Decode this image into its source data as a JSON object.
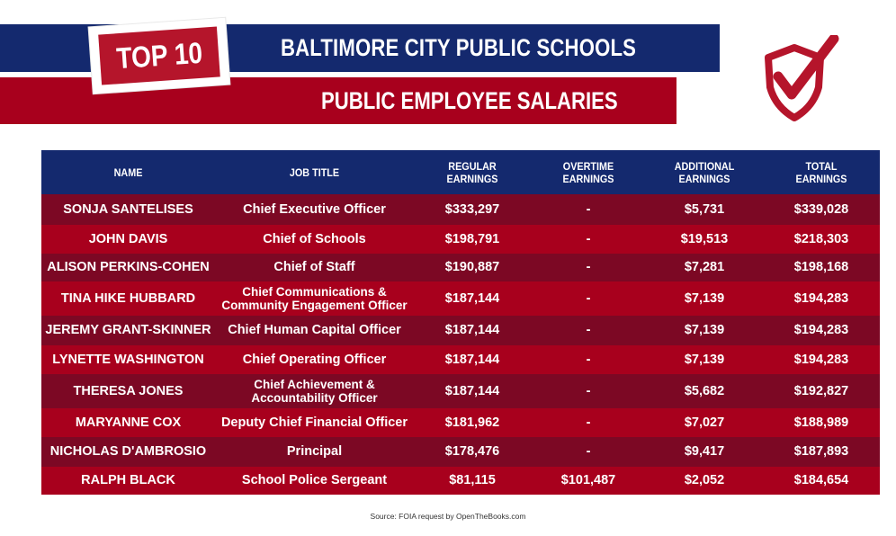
{
  "header": {
    "badge": "TOP 10",
    "title_line1": "BALTIMORE CITY PUBLIC SCHOOLS",
    "title_line2": "PUBLIC EMPLOYEE SALARIES"
  },
  "colors": {
    "navy": "#14296e",
    "red": "#a8001d",
    "dark_red": "#7c0824",
    "badge_red": "#b5152b"
  },
  "table": {
    "columns": [
      "NAME",
      "JOB TITLE",
      "REGULAR\nEARNINGS",
      "OVERTIME\nEARNINGS",
      "ADDITIONAL\nEARNINGS",
      "TOTAL\nEARNINGS"
    ],
    "rows": [
      {
        "name": "SONJA SANTELISES",
        "title": "Chief Executive Officer",
        "regular": "$333,297",
        "overtime": "-",
        "additional": "$5,731",
        "total": "$339,028"
      },
      {
        "name": "JOHN DAVIS",
        "title": "Chief of Schools",
        "regular": "$198,791",
        "overtime": "-",
        "additional": "$19,513",
        "total": "$218,303"
      },
      {
        "name": "ALISON PERKINS-COHEN",
        "title": "Chief of Staff",
        "regular": "$190,887",
        "overtime": "-",
        "additional": "$7,281",
        "total": "$198,168"
      },
      {
        "name": "TINA HIKE HUBBARD",
        "title": "Chief Communications & Community Engagement Officer",
        "regular": "$187,144",
        "overtime": "-",
        "additional": "$7,139",
        "total": "$194,283"
      },
      {
        "name": "JEREMY GRANT-SKINNER",
        "title": "Chief Human Capital Officer",
        "regular": "$187,144",
        "overtime": "-",
        "additional": "$7,139",
        "total": "$194,283"
      },
      {
        "name": "LYNETTE WASHINGTON",
        "title": "Chief Operating Officer",
        "regular": "$187,144",
        "overtime": "-",
        "additional": "$7,139",
        "total": "$194,283"
      },
      {
        "name": "THERESA JONES",
        "title": "Chief Achievement & Accountability Officer",
        "regular": "$187,144",
        "overtime": "-",
        "additional": "$5,682",
        "total": "$192,827"
      },
      {
        "name": "MARYANNE COX",
        "title": "Deputy Chief Financial Officer",
        "regular": "$181,962",
        "overtime": "-",
        "additional": "$7,027",
        "total": "$188,989"
      },
      {
        "name": "NICHOLAS D'AMBROSIO",
        "title": "Principal",
        "regular": "$178,476",
        "overtime": "-",
        "additional": "$9,417",
        "total": "$187,893"
      },
      {
        "name": "RALPH BLACK",
        "title": "School Police Sergeant",
        "regular": "$81,115",
        "overtime": "$101,487",
        "additional": "$2,052",
        "total": "$184,654"
      }
    ]
  },
  "footer": {
    "source": "Source: FOIA request by OpenTheBooks.com"
  }
}
